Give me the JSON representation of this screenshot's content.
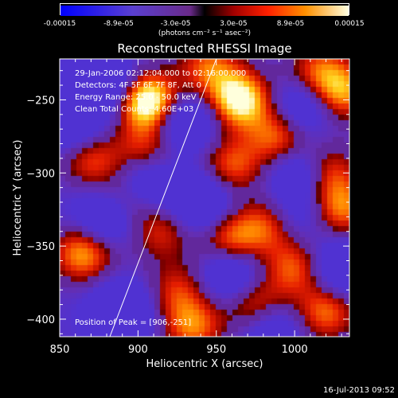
{
  "colorbar": {
    "ticks": [
      "-0.00015",
      "-8.9e-05",
      "-3.0e-05",
      "3.0e-05",
      "8.9e-05",
      "0.00015"
    ],
    "tick_values": [
      -0.00015,
      -8.9e-05,
      -3e-05,
      3e-05,
      8.9e-05,
      0.00015
    ],
    "units": "(photons cm⁻² s⁻¹ asec⁻²)",
    "range": [
      -0.00015,
      0.00015
    ]
  },
  "info": {
    "time": "29-Jan-2006 02:12:04.000 to 02:16:00.000",
    "detectors": "Detectors: 4F 5F 6F 7F 8F, Att 0",
    "energy": "Energy Range: 25.0 - 50.0 keV",
    "clean": "Clean     Total Counts: 4.60E+03",
    "peak": "Position of Peak = [906,-251]"
  },
  "timestamp": "16-Jul-2013 09:52",
  "chart_data": {
    "type": "heatmap",
    "title": "Reconstructed RHESSI Image",
    "xlabel": "Heliocentric X (arcsec)",
    "ylabel": "Heliocentric Y (arcsec)",
    "xlim": [
      850,
      1035
    ],
    "ylim": [
      -412,
      -222
    ],
    "xticks": [
      850,
      900,
      950,
      1000
    ],
    "yticks": [
      -250,
      -300,
      -350,
      -400
    ],
    "limb_curve": [
      [
        882,
        -412
      ],
      [
        950,
        -222
      ]
    ],
    "peak_position": [
      906,
      -251
    ],
    "blobs": [
      {
        "x": 906,
        "y": -251,
        "v": 1.0
      },
      {
        "x": 965,
        "y": -250,
        "v": 0.85
      },
      {
        "x": 1030,
        "y": -245,
        "v": 0.6
      },
      {
        "x": 945,
        "y": -228,
        "v": 0.5
      },
      {
        "x": 990,
        "y": -275,
        "v": 0.55
      },
      {
        "x": 960,
        "y": -295,
        "v": 0.5
      },
      {
        "x": 870,
        "y": -290,
        "v": 0.5
      },
      {
        "x": 905,
        "y": -285,
        "v": 0.45
      },
      {
        "x": 890,
        "y": -320,
        "v": 0.45
      },
      {
        "x": 1020,
        "y": -300,
        "v": 0.55
      },
      {
        "x": 1030,
        "y": -325,
        "v": 0.55
      },
      {
        "x": 985,
        "y": -335,
        "v": 0.5
      },
      {
        "x": 960,
        "y": -345,
        "v": 0.55
      },
      {
        "x": 915,
        "y": -340,
        "v": 0.4
      },
      {
        "x": 865,
        "y": -355,
        "v": 0.65
      },
      {
        "x": 1000,
        "y": -365,
        "v": 0.5
      },
      {
        "x": 975,
        "y": -390,
        "v": 0.55
      },
      {
        "x": 1020,
        "y": -395,
        "v": 0.55
      },
      {
        "x": 935,
        "y": -405,
        "v": 0.55
      },
      {
        "x": 925,
        "y": -380,
        "v": 0.4
      },
      {
        "x": 1015,
        "y": -230,
        "v": 0.45
      },
      {
        "x": 880,
        "y": -240,
        "v": -0.55
      },
      {
        "x": 930,
        "y": -265,
        "v": -0.5
      },
      {
        "x": 1005,
        "y": -300,
        "v": -0.5
      },
      {
        "x": 940,
        "y": -320,
        "v": -0.55
      },
      {
        "x": 880,
        "y": -330,
        "v": -0.6
      },
      {
        "x": 905,
        "y": -305,
        "v": -0.45
      },
      {
        "x": 1005,
        "y": -255,
        "v": -0.45
      },
      {
        "x": 960,
        "y": -370,
        "v": -0.5
      },
      {
        "x": 890,
        "y": -395,
        "v": -0.55
      },
      {
        "x": 1030,
        "y": -365,
        "v": -0.5
      },
      {
        "x": 985,
        "y": -405,
        "v": -0.4
      },
      {
        "x": 1000,
        "y": -330,
        "v": -0.35
      },
      {
        "x": 860,
        "y": -270,
        "v": -0.4
      }
    ]
  }
}
